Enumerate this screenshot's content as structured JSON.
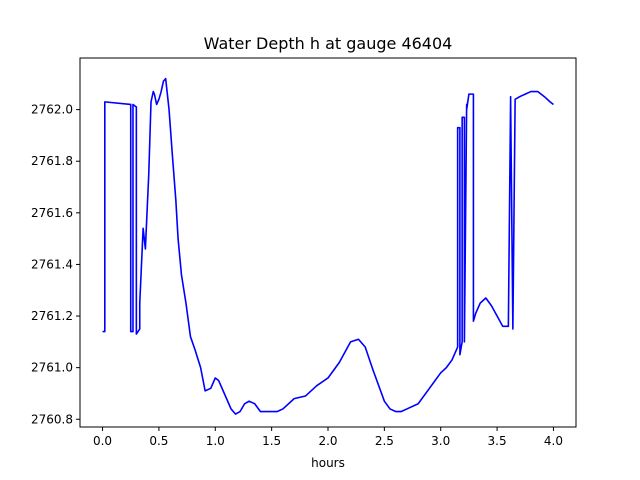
{
  "chart_data": {
    "type": "line",
    "title": "Water Depth h at gauge 46404",
    "xlabel": "hours",
    "ylabel": "",
    "xlim": [
      -0.2,
      4.2
    ],
    "ylim": [
      2760.77,
      2762.2
    ],
    "xticks": [
      0.0,
      0.5,
      1.0,
      1.5,
      2.0,
      2.5,
      3.0,
      3.5,
      4.0
    ],
    "xtick_labels": [
      "0.0",
      "0.5",
      "1.0",
      "1.5",
      "2.0",
      "2.5",
      "3.0",
      "3.5",
      "4.0"
    ],
    "yticks": [
      2760.8,
      2761.0,
      2761.2,
      2761.4,
      2761.6,
      2761.8,
      2762.0
    ],
    "ytick_labels": [
      "2760.8",
      "2761.0",
      "2761.2",
      "2761.4",
      "2761.6",
      "2761.8",
      "2762.0"
    ],
    "grid": false,
    "series": [
      {
        "color": "#0000ff",
        "x": [
          0.0,
          0.02,
          0.02,
          0.25,
          0.25,
          0.27,
          0.27,
          0.3,
          0.3,
          0.33,
          0.33,
          0.36,
          0.38,
          0.41,
          0.43,
          0.45,
          0.46,
          0.48,
          0.5,
          0.52,
          0.54,
          0.56,
          0.59,
          0.62,
          0.65,
          0.67,
          0.7,
          0.74,
          0.78,
          0.82,
          0.87,
          0.91,
          0.96,
          1.0,
          1.03,
          1.07,
          1.1,
          1.14,
          1.18,
          1.22,
          1.26,
          1.3,
          1.35,
          1.4,
          1.45,
          1.5,
          1.55,
          1.6,
          1.7,
          1.8,
          1.9,
          2.0,
          2.1,
          2.2,
          2.27,
          2.33,
          2.4,
          2.45,
          2.5,
          2.55,
          2.6,
          2.65,
          2.7,
          2.8,
          2.9,
          3.0,
          3.05,
          3.1,
          3.15,
          3.15,
          3.17,
          3.17,
          3.19,
          3.19,
          3.21,
          3.21,
          3.23,
          3.23,
          3.25,
          3.29,
          3.29,
          3.31,
          3.35,
          3.4,
          3.45,
          3.5,
          3.55,
          3.6,
          3.62,
          3.62,
          3.64,
          3.64,
          3.66,
          3.66,
          3.7,
          3.75,
          3.8,
          3.86,
          3.92,
          3.97,
          4.0
        ],
        "y": [
          2761.14,
          2761.14,
          2762.03,
          2762.02,
          2761.14,
          2761.14,
          2762.02,
          2762.01,
          2761.13,
          2761.15,
          2761.25,
          2761.54,
          2761.46,
          2761.75,
          2762.03,
          2762.07,
          2762.06,
          2762.02,
          2762.04,
          2762.07,
          2762.11,
          2762.12,
          2762.0,
          2761.82,
          2761.65,
          2761.5,
          2761.36,
          2761.25,
          2761.12,
          2761.07,
          2761.0,
          2760.91,
          2760.92,
          2760.96,
          2760.95,
          2760.91,
          2760.88,
          2760.84,
          2760.82,
          2760.83,
          2760.86,
          2760.87,
          2760.86,
          2760.83,
          2760.83,
          2760.83,
          2760.83,
          2760.84,
          2760.88,
          2760.89,
          2760.93,
          2760.96,
          2761.02,
          2761.1,
          2761.11,
          2761.08,
          2760.99,
          2760.93,
          2760.87,
          2760.84,
          2760.83,
          2760.83,
          2760.84,
          2760.86,
          2760.92,
          2760.98,
          2761.0,
          2761.03,
          2761.08,
          2761.93,
          2761.93,
          2761.05,
          2761.1,
          2761.97,
          2761.97,
          2761.1,
          2762.02,
          2762.0,
          2762.06,
          2762.06,
          2761.18,
          2761.21,
          2761.25,
          2761.27,
          2761.24,
          2761.2,
          2761.16,
          2761.16,
          2762.05,
          2762.04,
          2761.15,
          2761.15,
          2762.04,
          2762.04,
          2762.05,
          2762.06,
          2762.07,
          2762.07,
          2762.05,
          2762.03,
          2762.02
        ]
      }
    ]
  }
}
